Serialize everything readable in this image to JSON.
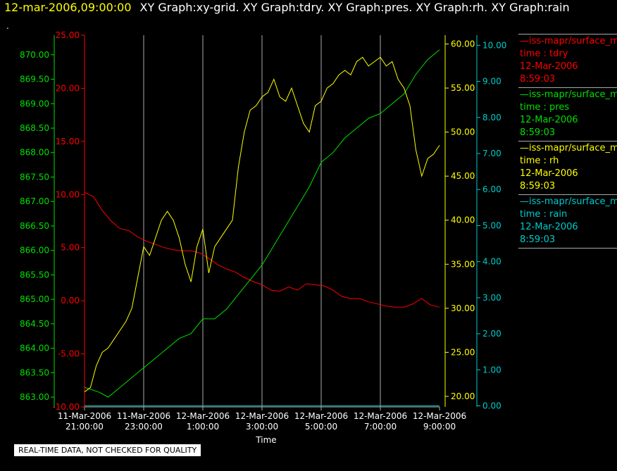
{
  "header": {
    "timestamp": "12-mar-2006,09:00:00",
    "title": "XY Graph:xy-grid.  XY Graph:tdry.  XY Graph:pres.  XY Graph:rh.  XY Graph:rain",
    "dot": "."
  },
  "quality_note": "REAL-TIME DATA, NOT CHECKED FOR QUALITY",
  "colors": {
    "tdry": "#ff0000",
    "pres": "#00e000",
    "rh": "#ffff00",
    "rain": "#00cccc",
    "grid": "#aaaaaa"
  },
  "legend": [
    {
      "series": "tdry",
      "source": "—iss-mapr/surface_m",
      "name": "time : tdry",
      "date": "12-Mar-2006",
      "time": "8:59:03"
    },
    {
      "series": "pres",
      "source": "—iss-mapr/surface_m",
      "name": "time : pres",
      "date": "12-Mar-2006",
      "time": "8:59:03"
    },
    {
      "series": "rh",
      "source": "—iss-mapr/surface_m",
      "name": "time : rh",
      "date": "12-Mar-2006",
      "time": "8:59:03"
    },
    {
      "series": "rain",
      "source": "—iss-mapr/surface_m",
      "name": "time : rain",
      "date": "12-Mar-2006",
      "time": "8:59:03"
    }
  ],
  "chart_data": {
    "type": "line",
    "xlabel": "Time",
    "x_unit": "hours since 11-Mar-2006 21:00:00",
    "xlim": [
      0,
      12
    ],
    "x_ticks": [
      {
        "x": 0,
        "line1": "11-Mar-2006",
        "line2": "21:00:00"
      },
      {
        "x": 2,
        "line1": "11-Mar-2006",
        "line2": "23:00:00"
      },
      {
        "x": 4,
        "line1": "12-Mar-2006",
        "line2": "1:00:00"
      },
      {
        "x": 6,
        "line1": "12-Mar-2006",
        "line2": "3:00:00"
      },
      {
        "x": 8,
        "line1": "12-Mar-2006",
        "line2": "5:00:00"
      },
      {
        "x": 10,
        "line1": "12-Mar-2006",
        "line2": "7:00:00"
      },
      {
        "x": 12,
        "line1": "12-Mar-2006",
        "line2": "9:00:00"
      }
    ],
    "grid": true,
    "axes": [
      {
        "series": "pres",
        "side": "left",
        "range": [
          862.8,
          870.4
        ],
        "ticks": [
          "863.00",
          "863.50",
          "864.00",
          "864.50",
          "865.00",
          "865.50",
          "866.00",
          "866.50",
          "867.00",
          "867.50",
          "868.00",
          "868.50",
          "869.00",
          "869.50",
          "870.00"
        ],
        "tick_values": [
          863,
          863.5,
          864,
          864.5,
          865,
          865.5,
          866,
          866.5,
          867,
          867.5,
          868,
          868.5,
          869,
          869.5,
          870
        ]
      },
      {
        "series": "tdry",
        "side": "left",
        "range": [
          -10,
          25
        ],
        "ticks": [
          "-10.00",
          "-5.00",
          "0.00",
          "5.00",
          "10.00",
          "15.00",
          "20.00",
          "25.00"
        ],
        "tick_values": [
          -10,
          -5,
          0,
          5,
          10,
          15,
          20,
          25
        ]
      },
      {
        "series": "rh",
        "side": "right",
        "range": [
          18.8,
          61.0
        ],
        "ticks": [
          "20.00",
          "25.00",
          "30.00",
          "35.00",
          "40.00",
          "45.00",
          "50.00",
          "55.00",
          "60.00"
        ],
        "tick_values": [
          20,
          25,
          30,
          35,
          40,
          45,
          50,
          55,
          60
        ]
      },
      {
        "series": "rain",
        "side": "right",
        "range": [
          -0.03,
          10.28
        ],
        "ticks": [
          "0.00",
          "1.00",
          "2.00",
          "3.00",
          "4.00",
          "5.00",
          "6.00",
          "7.00",
          "8.00",
          "9.00",
          "10.00"
        ],
        "tick_values": [
          0,
          1,
          2,
          3,
          4,
          5,
          6,
          7,
          8,
          9,
          10
        ]
      }
    ],
    "series": [
      {
        "name": "tdry",
        "points": [
          [
            0,
            10.2
          ],
          [
            0.3,
            9.8
          ],
          [
            0.6,
            8.5
          ],
          [
            0.9,
            7.5
          ],
          [
            1.2,
            6.8
          ],
          [
            1.5,
            6.6
          ],
          [
            1.8,
            6.0
          ],
          [
            2.1,
            5.6
          ],
          [
            2.4,
            5.3
          ],
          [
            2.7,
            5.0
          ],
          [
            3.0,
            4.8
          ],
          [
            3.3,
            4.7
          ],
          [
            3.6,
            4.7
          ],
          [
            3.9,
            4.5
          ],
          [
            4.2,
            4.0
          ],
          [
            4.5,
            3.4
          ],
          [
            4.8,
            3.0
          ],
          [
            5.1,
            2.7
          ],
          [
            5.4,
            2.2
          ],
          [
            5.7,
            1.8
          ],
          [
            6.0,
            1.5
          ],
          [
            6.3,
            1.0
          ],
          [
            6.6,
            0.9
          ],
          [
            6.9,
            1.3
          ],
          [
            7.2,
            1.0
          ],
          [
            7.5,
            1.6
          ],
          [
            7.8,
            1.5
          ],
          [
            8.1,
            1.4
          ],
          [
            8.4,
            1.0
          ],
          [
            8.7,
            0.4
          ],
          [
            9.0,
            0.2
          ],
          [
            9.3,
            0.2
          ],
          [
            9.6,
            -0.1
          ],
          [
            9.9,
            -0.3
          ],
          [
            10.2,
            -0.5
          ],
          [
            10.5,
            -0.6
          ],
          [
            10.8,
            -0.6
          ],
          [
            11.1,
            -0.3
          ],
          [
            11.4,
            0.2
          ],
          [
            11.7,
            -0.4
          ],
          [
            12.0,
            -0.6
          ]
        ]
      },
      {
        "name": "pres",
        "points": [
          [
            0,
            863.2
          ],
          [
            0.5,
            863.1
          ],
          [
            0.8,
            863.0
          ],
          [
            1.2,
            863.2
          ],
          [
            1.6,
            863.4
          ],
          [
            2.0,
            863.6
          ],
          [
            2.4,
            863.8
          ],
          [
            2.8,
            864.0
          ],
          [
            3.2,
            864.2
          ],
          [
            3.6,
            864.3
          ],
          [
            4.0,
            864.6
          ],
          [
            4.4,
            864.6
          ],
          [
            4.8,
            864.8
          ],
          [
            5.2,
            865.1
          ],
          [
            5.6,
            865.4
          ],
          [
            6.0,
            865.7
          ],
          [
            6.4,
            866.1
          ],
          [
            6.8,
            866.5
          ],
          [
            7.2,
            866.9
          ],
          [
            7.6,
            867.3
          ],
          [
            8.0,
            867.8
          ],
          [
            8.4,
            868.0
          ],
          [
            8.8,
            868.3
          ],
          [
            9.2,
            868.5
          ],
          [
            9.6,
            868.7
          ],
          [
            10.0,
            868.8
          ],
          [
            10.4,
            869.0
          ],
          [
            10.8,
            869.2
          ],
          [
            11.2,
            869.6
          ],
          [
            11.6,
            869.9
          ],
          [
            12.0,
            870.1
          ]
        ]
      },
      {
        "name": "rh",
        "points": [
          [
            0,
            20.5
          ],
          [
            0.2,
            21.0
          ],
          [
            0.4,
            23.5
          ],
          [
            0.6,
            25.0
          ],
          [
            0.8,
            25.5
          ],
          [
            1.0,
            26.5
          ],
          [
            1.2,
            27.5
          ],
          [
            1.4,
            28.5
          ],
          [
            1.6,
            30.0
          ],
          [
            1.8,
            33.5
          ],
          [
            2.0,
            37.0
          ],
          [
            2.2,
            36.0
          ],
          [
            2.4,
            38.0
          ],
          [
            2.6,
            40.0
          ],
          [
            2.8,
            41.0
          ],
          [
            3.0,
            40.0
          ],
          [
            3.2,
            38.0
          ],
          [
            3.4,
            35.0
          ],
          [
            3.6,
            33.0
          ],
          [
            3.8,
            37.0
          ],
          [
            4.0,
            39.0
          ],
          [
            4.2,
            34.0
          ],
          [
            4.4,
            37.0
          ],
          [
            4.6,
            38.0
          ],
          [
            4.8,
            39.0
          ],
          [
            5.0,
            40.0
          ],
          [
            5.2,
            46.0
          ],
          [
            5.4,
            50.0
          ],
          [
            5.6,
            52.5
          ],
          [
            5.8,
            53.0
          ],
          [
            6.0,
            54.0
          ],
          [
            6.2,
            54.5
          ],
          [
            6.4,
            56.0
          ],
          [
            6.6,
            54.0
          ],
          [
            6.8,
            53.5
          ],
          [
            7.0,
            55.0
          ],
          [
            7.2,
            53.0
          ],
          [
            7.4,
            51.0
          ],
          [
            7.6,
            50.0
          ],
          [
            7.8,
            53.0
          ],
          [
            8.0,
            53.5
          ],
          [
            8.2,
            55.0
          ],
          [
            8.4,
            55.5
          ],
          [
            8.6,
            56.5
          ],
          [
            8.8,
            57.0
          ],
          [
            9.0,
            56.5
          ],
          [
            9.2,
            58.0
          ],
          [
            9.4,
            58.5
          ],
          [
            9.6,
            57.5
          ],
          [
            9.8,
            58.0
          ],
          [
            10.0,
            58.5
          ],
          [
            10.2,
            57.5
          ],
          [
            10.4,
            58.0
          ],
          [
            10.6,
            56.0
          ],
          [
            10.8,
            55.0
          ],
          [
            11.0,
            53.0
          ],
          [
            11.2,
            48.0
          ],
          [
            11.4,
            45.0
          ],
          [
            11.6,
            47.0
          ],
          [
            11.8,
            47.5
          ],
          [
            12.0,
            48.5
          ]
        ]
      },
      {
        "name": "rain",
        "points": [
          [
            0,
            0.0
          ],
          [
            12,
            0.0
          ]
        ]
      }
    ]
  }
}
